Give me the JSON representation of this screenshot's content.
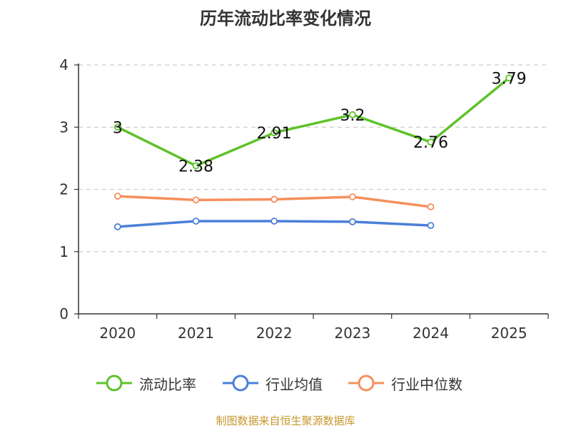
{
  "title": "历年流动比率变化情况",
  "source": "制图数据来自恒生聚源数据库",
  "chart_data": {
    "type": "line",
    "title": "历年流动比率变化情况",
    "xlabel": "",
    "ylabel": "",
    "categories": [
      "2020",
      "2021",
      "2022",
      "2023",
      "2024",
      "2025"
    ],
    "ylim": [
      0,
      4
    ],
    "yticks": [
      "0",
      "1",
      "2",
      "3",
      "4"
    ],
    "grid": true,
    "legend_position": "bottom",
    "series": [
      {
        "name": "流动比率",
        "color": "#5ec22a",
        "values": [
          3,
          2.38,
          2.91,
          3.2,
          2.76,
          3.79
        ],
        "labels": [
          "3",
          "2.38",
          "2.91",
          "3.2",
          "2.76",
          "3.79"
        ]
      },
      {
        "name": "行业均值",
        "color": "#4b7fd9",
        "values": [
          1.4,
          1.49,
          1.49,
          1.48,
          1.42,
          null
        ]
      },
      {
        "name": "行业中位数",
        "color": "#f68f5c",
        "values": [
          1.89,
          1.83,
          1.84,
          1.88,
          1.72,
          null
        ]
      }
    ]
  }
}
